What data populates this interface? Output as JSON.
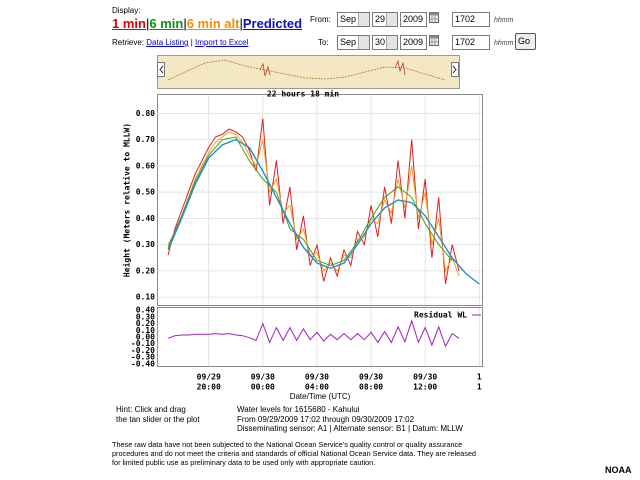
{
  "display": {
    "label": "Display:",
    "options": [
      "1 min",
      "6 min",
      "6 min alt",
      "Predicted"
    ],
    "separator": "|"
  },
  "retrieve": {
    "label": "Retrieve:",
    "links": [
      "Data Listing",
      "Import to Excel"
    ]
  },
  "from": {
    "label": "From:",
    "month": "Sep",
    "day": "29",
    "year": "2009",
    "time": "1702",
    "unit": "hhmm"
  },
  "to": {
    "label": "To:",
    "month": "Sep",
    "day": "30",
    "year": "2009",
    "time": "1702",
    "unit": "hhmm",
    "button": "Go"
  },
  "chart_data": [
    {
      "type": "line",
      "annotation": "22 hours 18 min",
      "ylabel": "Height (Meters relative to MLLW)",
      "xlabel": "Date/Time (UTC)",
      "grid": true,
      "xlim": [
        16.25,
        40.2
      ],
      "xticks": [
        {
          "value": 20,
          "date": "09/29",
          "time": "20:00"
        },
        {
          "value": 24,
          "date": "09/30",
          "time": "00:00"
        },
        {
          "value": 28,
          "date": "09/30",
          "time": "04:00"
        },
        {
          "value": 32,
          "date": "09/30",
          "time": "08:00"
        },
        {
          "value": 36,
          "date": "09/30",
          "time": "12:00"
        },
        {
          "value": 40,
          "date": "1",
          "time": "1"
        }
      ],
      "ylim": [
        0.07,
        0.87
      ],
      "yticks": [
        {
          "value": 0.1,
          "label": "0.10"
        },
        {
          "value": 0.2,
          "label": "0.20"
        },
        {
          "value": 0.3,
          "label": "0.30"
        },
        {
          "value": 0.4,
          "label": "0.40"
        },
        {
          "value": 0.5,
          "label": "0.50"
        },
        {
          "value": 0.6,
          "label": "0.60"
        },
        {
          "value": 0.7,
          "label": "0.70"
        },
        {
          "value": 0.8,
          "label": "0.80"
        }
      ],
      "x": [
        17,
        17.5,
        18,
        18.5,
        19,
        19.5,
        20,
        20.5,
        21,
        21.5,
        22,
        22.5,
        23,
        23.5,
        24,
        24.5,
        25,
        25.5,
        26,
        26.5,
        27,
        27.5,
        28,
        28.5,
        29,
        29.5,
        30,
        30.5,
        31,
        31.5,
        32,
        32.5,
        33,
        33.5,
        34,
        34.5,
        35,
        35.5,
        36,
        36.5,
        37,
        37.5,
        38,
        38.5
      ],
      "series": [
        {
          "color": "#e02020",
          "values": [
            0.26,
            0.36,
            0.43,
            0.5,
            0.57,
            0.62,
            0.67,
            0.71,
            0.72,
            0.74,
            0.73,
            0.71,
            0.66,
            0.58,
            0.78,
            0.45,
            0.62,
            0.38,
            0.52,
            0.28,
            0.41,
            0.22,
            0.3,
            0.16,
            0.25,
            0.18,
            0.28,
            0.22,
            0.35,
            0.3,
            0.45,
            0.33,
            0.52,
            0.38,
            0.62,
            0.4,
            0.7,
            0.36,
            0.55,
            0.25,
            0.48,
            0.15,
            0.3,
            0.2
          ]
        },
        {
          "color": "#f0a020",
          "values": [
            0.3,
            0.35,
            0.41,
            0.48,
            0.55,
            0.6,
            0.65,
            0.69,
            0.71,
            0.73,
            0.72,
            0.69,
            0.64,
            0.6,
            0.7,
            0.5,
            0.55,
            0.42,
            0.45,
            0.32,
            0.36,
            0.26,
            0.27,
            0.2,
            0.23,
            0.2,
            0.26,
            0.25,
            0.32,
            0.33,
            0.4,
            0.38,
            0.47,
            0.42,
            0.55,
            0.44,
            0.6,
            0.4,
            0.5,
            0.3,
            0.4,
            0.2,
            0.25,
            0.18
          ]
        },
        {
          "color": "#40a020",
          "x": [
            17,
            18,
            19,
            20,
            21,
            22,
            23,
            24,
            25,
            26,
            27,
            28,
            29,
            30,
            31,
            32,
            33,
            34,
            35,
            36,
            37,
            38
          ],
          "values": [
            0.29,
            0.41,
            0.54,
            0.64,
            0.7,
            0.71,
            0.62,
            0.55,
            0.5,
            0.36,
            0.32,
            0.24,
            0.22,
            0.24,
            0.31,
            0.4,
            0.48,
            0.52,
            0.48,
            0.38,
            0.3,
            0.24
          ]
        },
        {
          "color": "#2090d0",
          "x": [
            17,
            18,
            19,
            20,
            21,
            22,
            23,
            24,
            25,
            26,
            27,
            28,
            29,
            30,
            31,
            32,
            33,
            34,
            35,
            36,
            37,
            38,
            39,
            40
          ],
          "values": [
            0.28,
            0.4,
            0.53,
            0.63,
            0.68,
            0.7,
            0.67,
            0.58,
            0.48,
            0.38,
            0.29,
            0.23,
            0.21,
            0.23,
            0.3,
            0.38,
            0.44,
            0.47,
            0.46,
            0.41,
            0.33,
            0.25,
            0.19,
            0.15
          ]
        }
      ]
    },
    {
      "type": "line",
      "legend": "Residual WL",
      "xlim": [
        16.25,
        40.2
      ],
      "ylim": [
        -0.43,
        0.43
      ],
      "yticks": [
        {
          "value": 0.4,
          "label": "0.40"
        },
        {
          "value": 0.3,
          "label": "0.30"
        },
        {
          "value": 0.2,
          "label": "0.20"
        },
        {
          "value": 0.1,
          "label": "0.10"
        },
        {
          "value": 0,
          "label": "0.00"
        },
        {
          "value": -0.1,
          "label": "-0.10"
        },
        {
          "value": -0.2,
          "label": "-0.20"
        },
        {
          "value": -0.3,
          "label": "-0.30"
        },
        {
          "value": -0.4,
          "label": "-0.40"
        }
      ],
      "x": [
        17,
        17.5,
        18,
        18.5,
        19,
        19.5,
        20,
        20.5,
        21,
        21.5,
        22,
        22.5,
        23,
        23.5,
        24,
        24.5,
        25,
        25.5,
        26,
        26.5,
        27,
        27.5,
        28,
        28.5,
        29,
        29.5,
        30,
        30.5,
        31,
        31.5,
        32,
        32.5,
        33,
        33.5,
        34,
        34.5,
        35,
        35.5,
        36,
        36.5,
        37,
        37.5,
        38,
        38.5
      ],
      "series": [
        {
          "color": "#a020c0",
          "values": [
            -0.02,
            0.02,
            0.03,
            0.03,
            0.04,
            0.04,
            0.04,
            0.05,
            0.04,
            0.05,
            0.03,
            0.02,
            -0.01,
            -0.05,
            0.2,
            -0.08,
            0.14,
            -0.05,
            0.14,
            -0.05,
            0.12,
            -0.04,
            0.07,
            -0.06,
            0.04,
            -0.04,
            0.05,
            -0.04,
            0.05,
            -0.04,
            0.07,
            -0.08,
            0.08,
            -0.08,
            0.15,
            -0.07,
            0.24,
            -0.08,
            0.14,
            -0.12,
            0.15,
            -0.14,
            0.05,
            -0.02
          ]
        }
      ]
    }
  ],
  "hint": [
    "Hint: Click and drag",
    "the tan slider or the plot"
  ],
  "info": [
    "Water levels for 1615680 - Kahului",
    "From 09/29/2009 17:02 through 09/30/2009 17:02",
    "Disseminating sensor: A1 | Alternate sensor: B1 | Datum: MLLW"
  ],
  "disclaimer": [
    "These raw data have not been subjected to the National Ocean Service's quality control or quality assurance",
    "procedures and do not meet the criteria and standards of official National Ocean Service data. They are released",
    "for limited public use as preliminary data to be used only with appropriate caution."
  ],
  "footer": "NOAA"
}
